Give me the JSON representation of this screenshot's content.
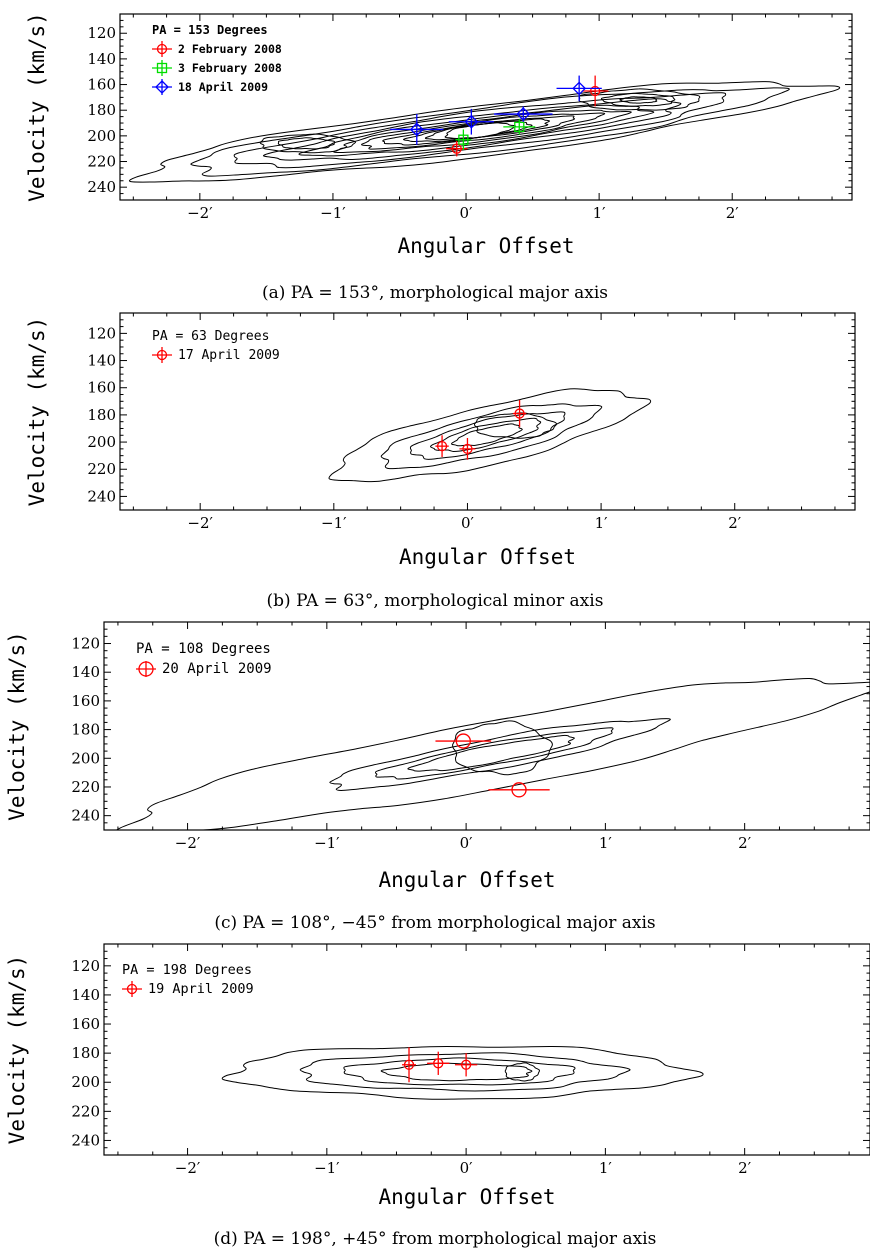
{
  "figure": {
    "panels": [
      {
        "caption": "(a) PA = 153°, morphological major axis",
        "legend_title": "PA = 153 Degrees",
        "ylabel": "Velocity (km/s)",
        "xlabel": "Angular Offset"
      },
      {
        "caption": "(b) PA = 63°, morphological minor axis",
        "legend_title": "PA = 63 Degrees",
        "ylabel": "Velocity (km/s)",
        "xlabel": "Angular Offset"
      },
      {
        "caption": "(c) PA = 108°, −45° from morphological major axis",
        "legend_title": "PA = 108 Degrees",
        "ylabel": "Velocity (km/s)",
        "xlabel": "Angular Offset"
      },
      {
        "caption": "(d) PA = 198°, +45° from morphological major axis",
        "legend_title": "PA = 198 Degrees",
        "ylabel": "Velocity (km/s)",
        "xlabel": "Angular Offset"
      }
    ]
  },
  "chart_data": [
    {
      "type": "scatter",
      "panel": "a",
      "xlim": [
        -2.6,
        2.9
      ],
      "ylim": [
        250,
        105
      ],
      "xticks": [
        -2,
        -1,
        0,
        1,
        2
      ],
      "xtick_labels": [
        "−2′",
        "−1′",
        "0′",
        "1′",
        "2′"
      ],
      "yticks": [
        120,
        140,
        160,
        180,
        200,
        220,
        240
      ],
      "ytick_labels": [
        "120",
        "140",
        "160",
        "180",
        "200",
        "220",
        "240"
      ],
      "legend_placement": "top-left",
      "background": "position-velocity contour map",
      "series": [
        {
          "name": "2 February 2008",
          "color": "#ff0000",
          "marker": "circle-small",
          "points": [
            {
              "x": -0.07,
              "y": 210,
              "xerr": 0.08,
              "yerr": 6
            },
            {
              "x": 0.97,
              "y": 165,
              "xerr": 0.1,
              "yerr": 12
            }
          ]
        },
        {
          "name": "3 February 2008",
          "color": "#00dd00",
          "marker": "square",
          "points": [
            {
              "x": -0.02,
              "y": 203,
              "xerr": 0.06,
              "yerr": 8
            },
            {
              "x": 0.4,
              "y": 193,
              "xerr": 0.12,
              "yerr": 6
            }
          ]
        },
        {
          "name": "18 April 2009",
          "color": "#0000ff",
          "marker": "diamond",
          "points": [
            {
              "x": -0.37,
              "y": 195,
              "xerr": 0.2,
              "yerr": 12
            },
            {
              "x": 0.04,
              "y": 189,
              "xerr": 0.17,
              "yerr": 10
            },
            {
              "x": 0.43,
              "y": 183,
              "xerr": 0.22,
              "yerr": 6
            },
            {
              "x": 0.85,
              "y": 163,
              "xerr": 0.17,
              "yerr": 10
            }
          ]
        }
      ]
    },
    {
      "type": "scatter",
      "panel": "b",
      "xlim": [
        -2.6,
        2.9
      ],
      "ylim": [
        250,
        105
      ],
      "xticks": [
        -2,
        -1,
        0,
        1,
        2
      ],
      "xtick_labels": [
        "−2′",
        "−1′",
        "0′",
        "1′",
        "2′"
      ],
      "yticks": [
        120,
        140,
        160,
        180,
        200,
        220,
        240
      ],
      "ytick_labels": [
        "120",
        "140",
        "160",
        "180",
        "200",
        "220",
        "240"
      ],
      "legend_placement": "top-left",
      "background": "position-velocity contour map",
      "series": [
        {
          "name": "17 April 2009",
          "color": "#ff0000",
          "marker": "circle-small",
          "points": [
            {
              "x": -0.19,
              "y": 203,
              "xerr": 0.05,
              "yerr": 8
            },
            {
              "x": 0.0,
              "y": 205,
              "xerr": 0.06,
              "yerr": 8
            },
            {
              "x": 0.39,
              "y": 179,
              "xerr": 0.05,
              "yerr": 10
            }
          ]
        }
      ]
    },
    {
      "type": "scatter",
      "panel": "c",
      "xlim": [
        -2.6,
        2.9
      ],
      "ylim": [
        250,
        105
      ],
      "xticks": [
        -2,
        -1,
        0,
        1,
        2
      ],
      "xtick_labels": [
        "−2′",
        "−1′",
        "0′",
        "1′",
        "2′"
      ],
      "yticks": [
        120,
        140,
        160,
        180,
        200,
        220,
        240
      ],
      "ytick_labels": [
        "120",
        "140",
        "160",
        "180",
        "200",
        "220",
        "240"
      ],
      "legend_placement": "top-left",
      "background": "position-velocity contour map",
      "series": [
        {
          "name": "20 April 2009",
          "color": "#ff0000",
          "marker": "circle-large",
          "points": [
            {
              "x": -0.02,
              "y": 188,
              "xerr": 0.2,
              "yerr": 0
            },
            {
              "x": 0.38,
              "y": 222,
              "xerr": 0.22,
              "yerr": 0
            }
          ]
        }
      ]
    },
    {
      "type": "scatter",
      "panel": "d",
      "xlim": [
        -2.6,
        2.9
      ],
      "ylim": [
        250,
        105
      ],
      "xticks": [
        -2,
        -1,
        0,
        1,
        2
      ],
      "xtick_labels": [
        "−2′",
        "−1′",
        "0′",
        "1′",
        "2′"
      ],
      "yticks": [
        120,
        140,
        160,
        180,
        200,
        220,
        240
      ],
      "ytick_labels": [
        "120",
        "140",
        "160",
        "180",
        "200",
        "220",
        "240"
      ],
      "legend_placement": "top-left",
      "background": "position-velocity contour map",
      "series": [
        {
          "name": "19 April 2009",
          "color": "#ff0000",
          "marker": "circle-small",
          "points": [
            {
              "x": -0.41,
              "y": 188,
              "xerr": 0.05,
              "yerr": 12
            },
            {
              "x": -0.2,
              "y": 187,
              "xerr": 0.08,
              "yerr": 8
            },
            {
              "x": 0.0,
              "y": 188,
              "xerr": 0.08,
              "yerr": 8
            }
          ]
        }
      ]
    }
  ]
}
